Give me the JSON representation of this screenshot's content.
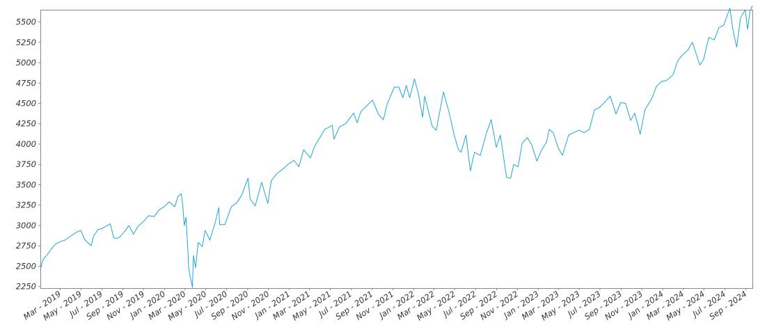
{
  "chart_data": {
    "type": "line",
    "title": "",
    "xlabel": "",
    "ylabel": "",
    "ylim": [
      2230,
      5650
    ],
    "xlim": [
      "2019-01-02",
      "2024-09-20"
    ],
    "grid": false,
    "legend": "none",
    "colors": {
      "line": "#1ea5d8",
      "frame": "#888888",
      "tick_text": "#333333"
    },
    "y_ticks": [
      2250,
      2500,
      2750,
      3000,
      3250,
      3500,
      3750,
      4000,
      4250,
      4500,
      4750,
      5000,
      5250,
      5500
    ],
    "x_ticks": [
      {
        "date": "2019-03-01",
        "label": "Mar - 2019"
      },
      {
        "date": "2019-05-01",
        "label": "May - 2019"
      },
      {
        "date": "2019-07-01",
        "label": "Jul - 2019"
      },
      {
        "date": "2019-09-01",
        "label": "Sep - 2019"
      },
      {
        "date": "2019-11-01",
        "label": "Nov - 2019"
      },
      {
        "date": "2020-01-01",
        "label": "Jan - 2020"
      },
      {
        "date": "2020-03-01",
        "label": "Mar - 2020"
      },
      {
        "date": "2020-05-01",
        "label": "May - 2020"
      },
      {
        "date": "2020-07-01",
        "label": "Jul - 2020"
      },
      {
        "date": "2020-09-01",
        "label": "Sep - 2020"
      },
      {
        "date": "2020-11-01",
        "label": "Nov - 2020"
      },
      {
        "date": "2021-01-01",
        "label": "Jan - 2021"
      },
      {
        "date": "2021-03-01",
        "label": "Mar - 2021"
      },
      {
        "date": "2021-05-01",
        "label": "May - 2021"
      },
      {
        "date": "2021-07-01",
        "label": "Jul - 2021"
      },
      {
        "date": "2021-09-01",
        "label": "Sep - 2021"
      },
      {
        "date": "2021-11-01",
        "label": "Nov - 2021"
      },
      {
        "date": "2022-01-01",
        "label": "Jan - 2022"
      },
      {
        "date": "2022-03-01",
        "label": "Mar - 2022"
      },
      {
        "date": "2022-05-01",
        "label": "May - 2022"
      },
      {
        "date": "2022-07-01",
        "label": "Jul - 2022"
      },
      {
        "date": "2022-09-01",
        "label": "Sep - 2022"
      },
      {
        "date": "2022-11-01",
        "label": "Nov - 2022"
      },
      {
        "date": "2023-01-01",
        "label": "Jan - 2023"
      },
      {
        "date": "2023-03-01",
        "label": "Mar - 2023"
      },
      {
        "date": "2023-05-01",
        "label": "May - 2023"
      },
      {
        "date": "2023-07-01",
        "label": "Jul - 2023"
      },
      {
        "date": "2023-09-01",
        "label": "Sep - 2023"
      },
      {
        "date": "2023-11-01",
        "label": "Nov - 2023"
      },
      {
        "date": "2024-01-01",
        "label": "Jan - 2024"
      },
      {
        "date": "2024-03-01",
        "label": "Mar - 2024"
      },
      {
        "date": "2024-05-01",
        "label": "May - 2024"
      },
      {
        "date": "2024-07-01",
        "label": "Jul - 2024"
      },
      {
        "date": "2024-09-01",
        "label": "Sep - 2024"
      }
    ],
    "series": [
      {
        "x": [
          "2019-01-02",
          "2019-01-08",
          "2019-01-15",
          "2019-01-22",
          "2019-02-01",
          "2019-02-15",
          "2019-03-01",
          "2019-03-15",
          "2019-04-01",
          "2019-04-15",
          "2019-04-30",
          "2019-05-13",
          "2019-05-31",
          "2019-06-07",
          "2019-06-20",
          "2019-07-01",
          "2019-07-26",
          "2019-08-05",
          "2019-08-14",
          "2019-08-23",
          "2019-09-03",
          "2019-09-19",
          "2019-10-02",
          "2019-10-15",
          "2019-11-01",
          "2019-11-15",
          "2019-12-02",
          "2019-12-16",
          "2019-12-31",
          "2020-01-15",
          "2020-01-31",
          "2020-02-10",
          "2020-02-19",
          "2020-02-24",
          "2020-02-28",
          "2020-03-04",
          "2020-03-09",
          "2020-03-12",
          "2020-03-16",
          "2020-03-23",
          "2020-03-26",
          "2020-04-01",
          "2020-04-09",
          "2020-04-21",
          "2020-04-29",
          "2020-05-13",
          "2020-05-29",
          "2020-06-08",
          "2020-06-11",
          "2020-06-26",
          "2020-07-15",
          "2020-07-31",
          "2020-08-14",
          "2020-09-02",
          "2020-09-08",
          "2020-09-23",
          "2020-10-12",
          "2020-10-30",
          "2020-11-09",
          "2020-11-24",
          "2020-12-15",
          "2020-12-31",
          "2021-01-15",
          "2021-01-29",
          "2021-02-12",
          "2021-03-04",
          "2021-03-16",
          "2021-04-15",
          "2021-05-07",
          "2021-05-12",
          "2021-05-28",
          "2021-06-15",
          "2021-07-09",
          "2021-07-19",
          "2021-07-30",
          "2021-08-16",
          "2021-09-02",
          "2021-09-20",
          "2021-10-04",
          "2021-10-15",
          "2021-11-05",
          "2021-11-18",
          "2021-11-30",
          "2021-12-10",
          "2021-12-20",
          "2022-01-03",
          "2022-01-14",
          "2022-01-27",
          "2022-02-02",
          "2022-02-24",
          "2022-03-08",
          "2022-03-29",
          "2022-04-14",
          "2022-04-29",
          "2022-05-12",
          "2022-05-20",
          "2022-06-03",
          "2022-06-16",
          "2022-06-28",
          "2022-07-15",
          "2022-08-01",
          "2022-08-16",
          "2022-08-31",
          "2022-09-12",
          "2022-09-30",
          "2022-10-12",
          "2022-10-21",
          "2022-11-03",
          "2022-11-15",
          "2022-11-30",
          "2022-12-13",
          "2022-12-28",
          "2023-01-10",
          "2023-01-25",
          "2023-02-02",
          "2023-02-14",
          "2023-03-01",
          "2023-03-13",
          "2023-03-31",
          "2023-04-14",
          "2023-05-01",
          "2023-05-15",
          "2023-05-31",
          "2023-06-15",
          "2023-06-30",
          "2023-07-14",
          "2023-07-31",
          "2023-08-17",
          "2023-08-31",
          "2023-09-14",
          "2023-09-29",
          "2023-10-11",
          "2023-10-27",
          "2023-11-10",
          "2023-11-30",
          "2023-12-14",
          "2023-12-29",
          "2024-01-12",
          "2024-01-31",
          "2024-02-15",
          "2024-02-29",
          "2024-03-14",
          "2024-03-28",
          "2024-04-19",
          "2024-04-30",
          "2024-05-15",
          "2024-05-31",
          "2024-06-14",
          "2024-06-28",
          "2024-07-16",
          "2024-07-25",
          "2024-08-05",
          "2024-08-16",
          "2024-08-30",
          "2024-09-06",
          "2024-09-13",
          "2024-09-20"
        ],
        "y": [
          2450,
          2560,
          2610,
          2640,
          2700,
          2770,
          2800,
          2820,
          2870,
          2910,
          2940,
          2820,
          2750,
          2870,
          2950,
          2960,
          3020,
          2850,
          2840,
          2860,
          2910,
          3000,
          2890,
          2990,
          3050,
          3120,
          3110,
          3190,
          3230,
          3290,
          3230,
          3360,
          3390,
          3230,
          3000,
          3100,
          2740,
          2480,
          2380,
          2240,
          2630,
          2480,
          2790,
          2740,
          2940,
          2820,
          3040,
          3220,
          3010,
          3010,
          3230,
          3280,
          3370,
          3580,
          3330,
          3240,
          3530,
          3270,
          3550,
          3630,
          3700,
          3760,
          3800,
          3720,
          3930,
          3830,
          3970,
          4180,
          4230,
          4060,
          4210,
          4250,
          4380,
          4260,
          4400,
          4470,
          4540,
          4360,
          4300,
          4490,
          4700,
          4700,
          4570,
          4720,
          4570,
          4800,
          4630,
          4330,
          4590,
          4220,
          4170,
          4640,
          4400,
          4120,
          3930,
          3900,
          4110,
          3670,
          3900,
          3860,
          4120,
          4300,
          3960,
          4110,
          3590,
          3580,
          3750,
          3720,
          4010,
          4080,
          3990,
          3790,
          3920,
          4020,
          4180,
          4140,
          3950,
          3860,
          4110,
          4140,
          4170,
          4140,
          4180,
          4420,
          4450,
          4510,
          4590,
          4370,
          4510,
          4500,
          4290,
          4380,
          4120,
          4420,
          4560,
          4710,
          4770,
          4780,
          4850,
          5030,
          5100,
          5150,
          5250,
          4970,
          5040,
          5310,
          5280,
          5430,
          5460,
          5670,
          5400,
          5190,
          5550,
          5650,
          5410,
          5630,
          5700
        ]
      }
    ]
  }
}
